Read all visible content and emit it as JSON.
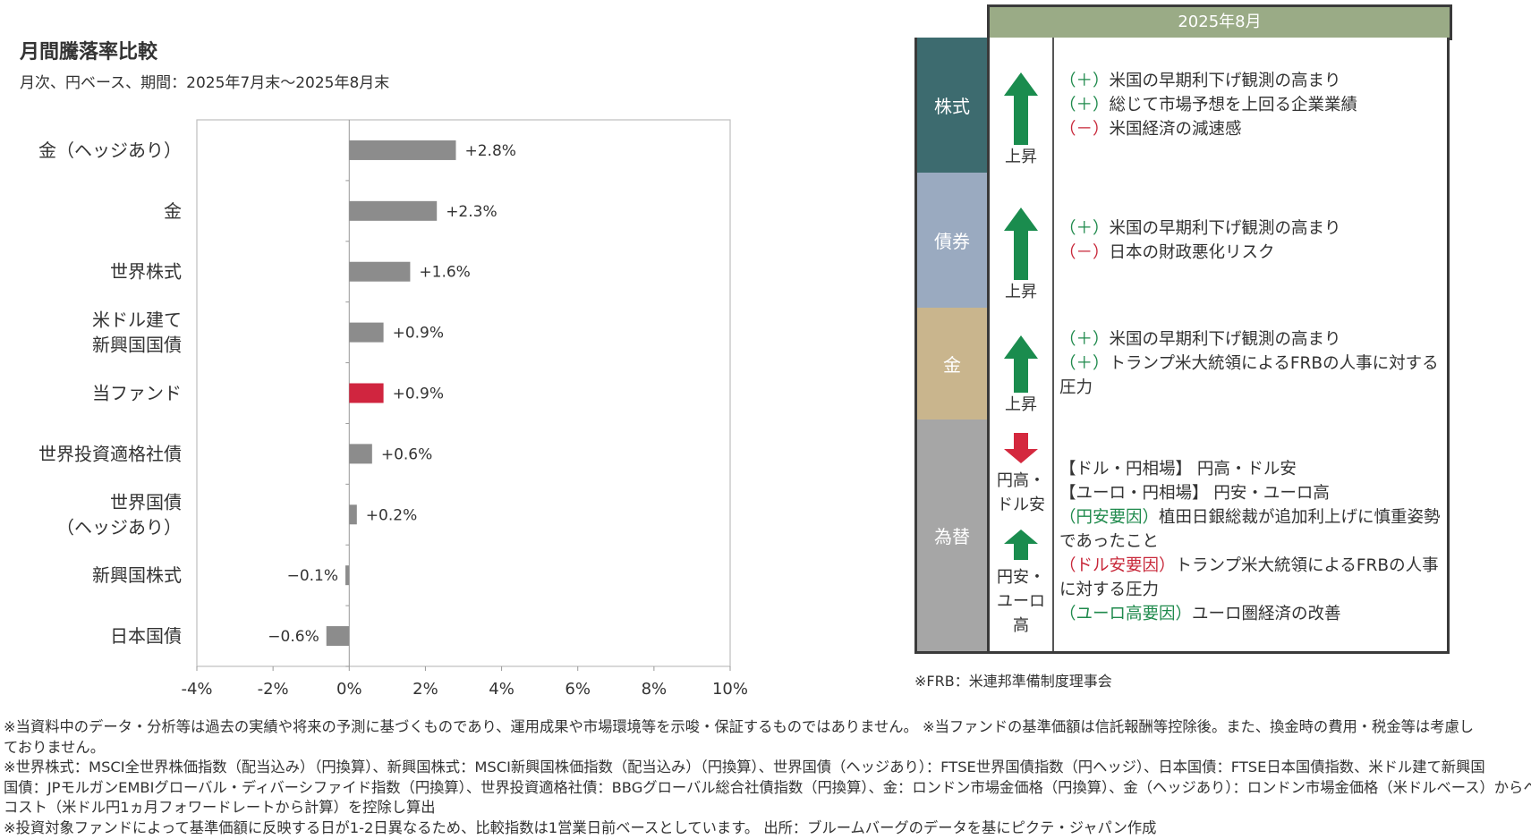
{
  "title": "月間騰落率比較",
  "subtitle": "月次、円ベース、期間：2025年7月末～2025年8月末",
  "chart_data": {
    "type": "bar",
    "orientation": "horizontal",
    "categories": [
      [
        "金（ヘッジあり）"
      ],
      [
        "金"
      ],
      [
        "世界株式"
      ],
      [
        "米ドル建て",
        "新興国国債"
      ],
      [
        "当ファンド"
      ],
      [
        "世界投資適格社債"
      ],
      [
        "世界国債",
        "（ヘッジあり）"
      ],
      [
        "新興国株式"
      ],
      [
        "日本国債"
      ]
    ],
    "values": [
      2.8,
      2.3,
      1.6,
      0.9,
      0.9,
      0.6,
      0.2,
      -0.1,
      -0.6
    ],
    "labels": [
      "+2.8%",
      "+2.3%",
      "+1.6%",
      "+0.9%",
      "+0.9%",
      "+0.6%",
      "+0.2%",
      "−0.1%",
      "−0.6%"
    ],
    "highlight_index": 4,
    "colors": {
      "default": "#8c8c8c",
      "highlight": "#d0253f"
    },
    "xlim": [
      -4,
      10
    ],
    "xticks": [
      -4,
      -2,
      0,
      2,
      4,
      6,
      8,
      10
    ],
    "xtick_labels": [
      "-4%",
      "-2%",
      "0%",
      "2%",
      "4%",
      "6%",
      "8%",
      "10%"
    ],
    "xlabel": "",
    "ylabel": "",
    "grid": false
  },
  "table": {
    "header": "2025年8月",
    "rows": [
      {
        "category": "株式",
        "color": "#3d6b6f",
        "direction": "上昇",
        "arrow": "up",
        "lines": [
          {
            "tag": "（＋）",
            "tagcolor": "g",
            "text": "米国の早期利下げ観測の高まり"
          },
          {
            "tag": "（＋）",
            "tagcolor": "g",
            "text": "総じて市場予想を上回る企業業績"
          },
          {
            "tag": "（－）",
            "tagcolor": "r",
            "text": "米国経済の減速感"
          }
        ]
      },
      {
        "category": "債券",
        "color": "#9aaac0",
        "direction": "上昇",
        "arrow": "up",
        "lines": [
          {
            "tag": "（＋）",
            "tagcolor": "g",
            "text": "米国の早期利下げ観測の高まり"
          },
          {
            "tag": "（－）",
            "tagcolor": "r",
            "text": "日本の財政悪化リスク"
          }
        ]
      },
      {
        "category": "金",
        "color": "#c9b58d",
        "direction": "上昇",
        "arrow": "up",
        "lines": [
          {
            "tag": "（＋）",
            "tagcolor": "g",
            "text": "米国の早期利下げ観測の高まり"
          },
          {
            "tag": "（＋）",
            "tagcolor": "g",
            "text": "トランプ米大統領によるFRBの人事に対する圧力"
          }
        ]
      },
      {
        "category": "為替",
        "color": "#a6a6a6",
        "direction_down": "円高・ドル安",
        "direction_up": "円安・ユーロ高",
        "lines": [
          {
            "tag": "",
            "tagcolor": "",
            "text": "【ドル・円相場】 円高・ドル安"
          },
          {
            "tag": "",
            "tagcolor": "",
            "text": "【ユーロ・円相場】 円安・ユーロ高"
          },
          {
            "tag": "（円安要因）",
            "tagcolor": "g",
            "text": "植田日銀総裁が追加利上げに慎重姿勢であったこと"
          },
          {
            "tag": "（ドル安要因）",
            "tagcolor": "r",
            "text": "トランプ米大統領によるFRBの人事に対する圧力"
          },
          {
            "tag": "（ユーロ高要因）",
            "tagcolor": "g",
            "text": "ユーロ圏経済の改善"
          }
        ]
      }
    ],
    "arrow_colors": {
      "up": "#1a8c4e",
      "down": "#d4283e"
    }
  },
  "frb_note": "※FRB：米連邦準備制度理事会",
  "footnotes": [
    "※当資料中のデータ・分析等は過去の実績や将来の予測に基づくものであり、運用成果や市場環境等を示唆・保証するものではありません。 ※当ファンドの基準価額は信託報酬等控除後。また、換金時の費用・税金等は考慮し",
    "ておりません。",
    "※世界株式：MSCI全世界株価指数（配当込み）（円換算）、新興国株式：MSCI新興国株価指数（配当込み）（円換算）、世界国債（ヘッジあり）：FTSE世界国債指数（円ヘッジ）、日本国債：FTSE日本国債指数、米ドル建て新興国",
    "国債：JPモルガンEMBIグローバル・ディバーシファイド指数（円換算）、世界投資適格社債：BBGグローバル総合社債指数（円換算）、金：ロンドン市場金価格（円換算）、金（ヘッジあり）：ロンドン市場金価格（米ドルベース）からヘッジ",
    "コスト（米ドル円1ヵ月フォワードレートから計算）を控除し算出",
    "※投資対象ファンドによって基準価額に反映する日が1-2日異なるため、比較指数は1営業日前ベースとしています。 出所：ブルームバーグのデータを基にピクテ・ジャパン作成"
  ]
}
